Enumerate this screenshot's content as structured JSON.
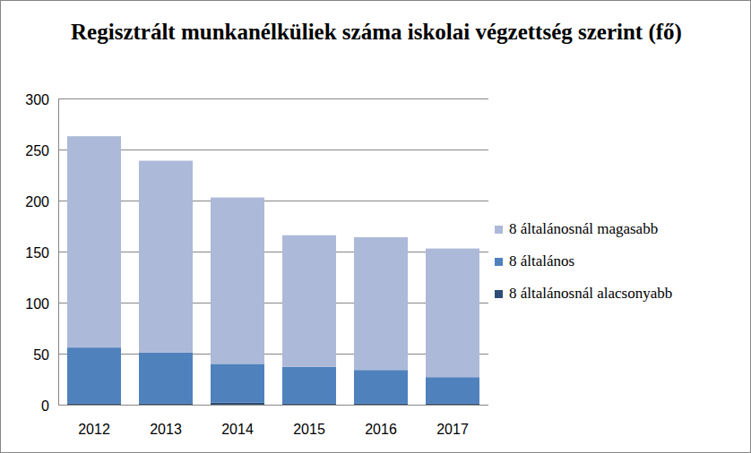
{
  "chart_data": {
    "type": "bar",
    "stacked": true,
    "title": "Regisztrált munkanélküliek száma iskolai végzettség szerint (fő)",
    "categories": [
      "2012",
      "2013",
      "2014",
      "2015",
      "2016",
      "2017"
    ],
    "series": [
      {
        "name": "8 általánosnál alacsonyabb",
        "color": "#2c4d75",
        "values": [
          1,
          1,
          2,
          1,
          1,
          1
        ]
      },
      {
        "name": "8 általános",
        "color": "#4f81bd",
        "values": [
          55,
          50,
          38,
          36,
          33,
          26
        ]
      },
      {
        "name": "8 általánosnál magasabb",
        "color": "#adb9d9",
        "values": [
          207,
          188,
          163,
          129,
          130,
          126
        ]
      }
    ],
    "ylim": [
      0,
      300
    ],
    "yticks": [
      0,
      50,
      100,
      150,
      200,
      250,
      300
    ],
    "grid": true,
    "legend": "right"
  }
}
